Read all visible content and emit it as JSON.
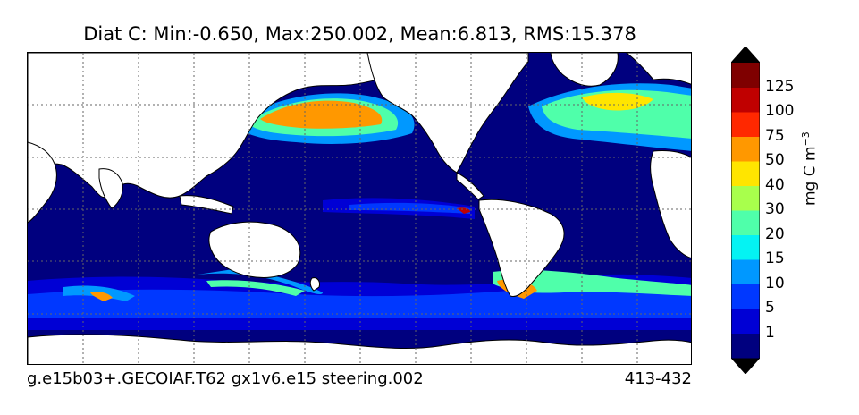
{
  "title": "Diat C: Min:-0.650, Max:250.002, Mean:6.813, RMS:15.378",
  "footer": {
    "case": "g.e15b03+.GECOIAF.T62 gx1v6.e15 steering.002",
    "years": "413-432"
  },
  "colorbar": {
    "units_base": "mg C m",
    "units_exp": "−3",
    "levels": [
      "1",
      "5",
      "10",
      "15",
      "20",
      "30",
      "40",
      "50",
      "75",
      "100",
      "125"
    ],
    "colors": [
      "#00007f",
      "#0000d5",
      "#0038ff",
      "#0098ff",
      "#04f3f3",
      "#4fffaa",
      "#a8ff4c",
      "#ffe500",
      "#ff9800",
      "#ff2800",
      "#c00000",
      "#7f0000"
    ],
    "land_color": "#ffffff",
    "extend": "both"
  }
}
